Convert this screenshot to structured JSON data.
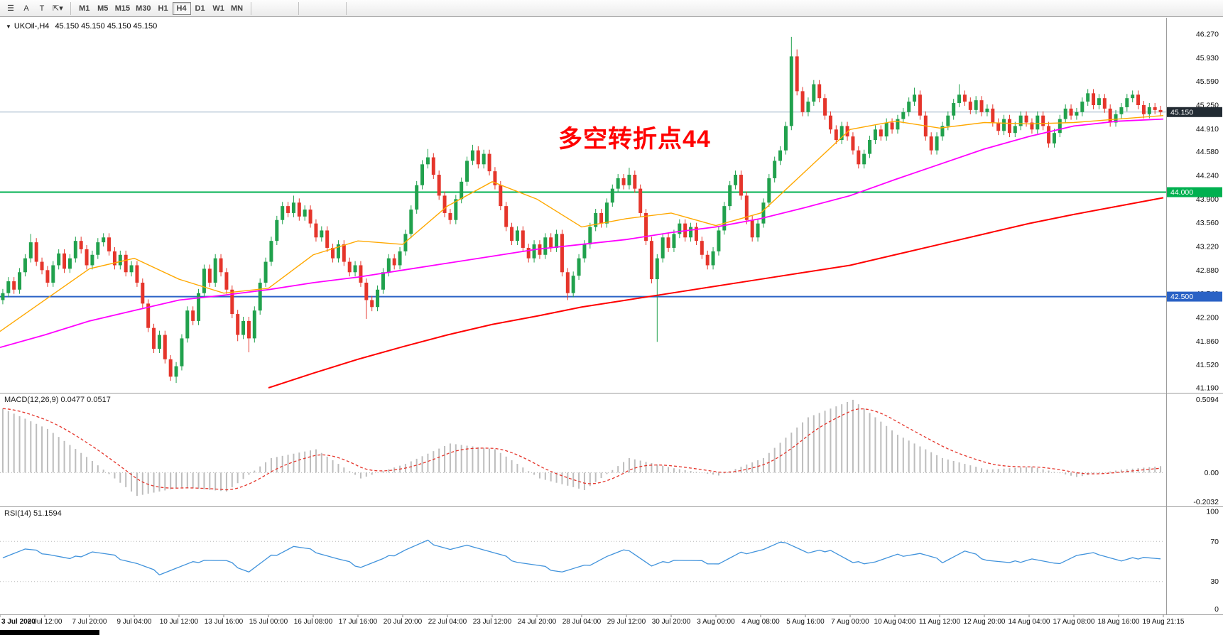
{
  "toolbar": {
    "tools": [
      {
        "name": "charts-list-icon",
        "glyph": "☰"
      },
      {
        "name": "cursor-tool-button",
        "glyph": "A"
      },
      {
        "name": "text-tool-button",
        "glyph": "T"
      },
      {
        "name": "shapes-dropdown-icon",
        "glyph": "⇱▾"
      }
    ],
    "timeframes": [
      "M1",
      "M5",
      "M15",
      "M30",
      "H1",
      "H4",
      "D1",
      "W1",
      "MN"
    ],
    "active_timeframe": "H4"
  },
  "chart": {
    "collapse_arrow": "▼",
    "symbol_label": "UKOil-,H4",
    "ohlc_label": "45.150 45.150 45.150 45.150",
    "annotation": "多空转折点44",
    "current_price_label": "45.150",
    "green_level_label": "44.000",
    "blue_level_label": "42.500",
    "price_axis": [
      "46.270",
      "45.930",
      "45.590",
      "45.250",
      "44.910",
      "44.580",
      "44.240",
      "43.900",
      "43.560",
      "43.220",
      "42.880",
      "42.540",
      "42.200",
      "41.860",
      "41.520",
      "41.190"
    ],
    "time_axis": [
      "3 Jul 2020",
      "6 Jul 12:00",
      "7 Jul 20:00",
      "9 Jul 04:00",
      "10 Jul 12:00",
      "13 Jul 16:00",
      "15 Jul 00:00",
      "16 Jul 08:00",
      "17 Jul 16:00",
      "20 Jul 20:00",
      "22 Jul 04:00",
      "23 Jul 12:00",
      "24 Jul 20:00",
      "28 Jul 04:00",
      "29 Jul 12:00",
      "30 Jul 20:00",
      "3 Aug 00:00",
      "4 Aug 08:00",
      "5 Aug 16:00",
      "7 Aug 00:00",
      "10 Aug 04:00",
      "11 Aug 12:00",
      "12 Aug 20:00",
      "14 Aug 04:00",
      "17 Aug 08:00",
      "18 Aug 16:00",
      "19 Aug 21:15"
    ]
  },
  "macd_panel": {
    "label": "MACD(12,26,9) 0.0477 0.0517",
    "axis_max": "0.5094",
    "axis_zero": "0.00",
    "axis_min": "-0.2032"
  },
  "rsi_panel": {
    "label": "RSI(14) 51.1594",
    "axis": [
      "100",
      "70",
      "30",
      "0"
    ],
    "levels": [
      70,
      30
    ]
  },
  "colors": {
    "up": "#21A14D",
    "down": "#E5352B",
    "ma_fast": "#FFA800",
    "ma_medium": "#FF00FF",
    "ma_slow": "#FF0000",
    "green_line": "#00B050",
    "blue_line": "#2A62C5",
    "bid_line": "#9DB3C8",
    "bid_badge": "#222B33",
    "macd_hist": "#BDBDBD",
    "macd_signal": "#E5352B",
    "rsi": "#4193DC",
    "annotation": "#FF0000"
  },
  "chart_data": {
    "type": "candlestick",
    "symbol": "UKOil-",
    "timeframe": "H4",
    "price_top": 46.27,
    "price_bottom": 41.19,
    "current_price": 45.15,
    "green_level": 44.0,
    "blue_level": 42.5,
    "first_open": 42.45,
    "default_wick": 0.06,
    "closes": [
      42.55,
      42.72,
      42.6,
      42.85,
      43.05,
      43.28,
      43.0,
      42.88,
      42.7,
      42.95,
      43.12,
      42.9,
      43.05,
      43.3,
      43.18,
      42.95,
      43.1,
      43.28,
      43.35,
      43.15,
      42.95,
      43.1,
      42.85,
      42.95,
      42.7,
      42.4,
      42.05,
      41.75,
      41.95,
      41.6,
      41.35,
      41.5,
      41.9,
      42.3,
      42.15,
      42.55,
      42.9,
      42.7,
      43.05,
      42.85,
      42.6,
      42.25,
      41.95,
      42.15,
      41.9,
      42.3,
      42.7,
      43.0,
      43.3,
      43.6,
      43.8,
      43.7,
      43.85,
      43.65,
      43.75,
      43.55,
      43.35,
      43.45,
      43.2,
      43.05,
      43.25,
      43.0,
      42.85,
      42.95,
      42.7,
      42.45,
      42.35,
      42.6,
      42.85,
      43.05,
      42.95,
      43.15,
      43.4,
      43.75,
      44.1,
      44.4,
      44.5,
      44.25,
      43.95,
      43.7,
      43.6,
      43.9,
      44.15,
      44.45,
      44.6,
      44.4,
      44.55,
      44.3,
      44.1,
      43.8,
      43.5,
      43.3,
      43.45,
      43.2,
      43.05,
      43.25,
      43.1,
      43.35,
      43.2,
      43.4,
      42.85,
      42.55,
      42.8,
      43.05,
      43.25,
      43.5,
      43.7,
      43.55,
      43.85,
      44.05,
      44.2,
      44.1,
      44.25,
      44.05,
      43.7,
      43.3,
      42.75,
      43.05,
      43.35,
      43.2,
      43.4,
      43.55,
      43.35,
      43.5,
      43.3,
      43.1,
      42.95,
      43.15,
      43.45,
      43.8,
      44.1,
      44.25,
      43.95,
      43.6,
      43.35,
      43.55,
      43.85,
      44.2,
      44.45,
      44.6,
      44.95,
      45.95,
      45.45,
      45.15,
      45.3,
      45.55,
      45.35,
      45.1,
      44.9,
      44.75,
      44.95,
      44.8,
      44.6,
      44.4,
      44.55,
      44.75,
      44.9,
      44.8,
      45.0,
      44.9,
      45.05,
      45.15,
      45.3,
      45.4,
      45.1,
      44.8,
      44.6,
      44.8,
      44.95,
      45.1,
      45.28,
      45.4,
      45.3,
      45.18,
      45.32,
      45.15,
      45.2,
      45.0,
      44.88,
      45.05,
      44.85,
      44.95,
      45.1,
      45.0,
      44.9,
      45.1,
      44.95,
      44.7,
      44.85,
      45.05,
      45.2,
      45.1,
      45.15,
      45.3,
      45.42,
      45.25,
      45.35,
      45.2,
      45.0,
      45.12,
      45.22,
      45.35,
      45.4,
      45.25,
      45.12,
      45.22,
      45.18,
      45.15
    ],
    "extremes": [
      {
        "bar": 5,
        "high": 43.4
      },
      {
        "bar": 31,
        "low": 41.26
      },
      {
        "bar": 42,
        "low": 41.86
      },
      {
        "bar": 44,
        "low": 41.7
      },
      {
        "bar": 52,
        "high": 43.95
      },
      {
        "bar": 65,
        "low": 42.18
      },
      {
        "bar": 76,
        "high": 44.62
      },
      {
        "bar": 84,
        "high": 44.68
      },
      {
        "bar": 101,
        "low": 42.45
      },
      {
        "bar": 112,
        "high": 44.35
      },
      {
        "bar": 117,
        "low": 41.85
      },
      {
        "bar": 141,
        "high": 46.23
      },
      {
        "bar": 142,
        "high": 46.05
      },
      {
        "bar": 163,
        "high": 45.5
      },
      {
        "bar": 171,
        "high": 45.55
      }
    ],
    "ma_fast": {
      "start": 0,
      "step": 8,
      "values": [
        42.0,
        42.45,
        42.9,
        43.05,
        42.75,
        42.55,
        42.62,
        43.1,
        43.3,
        43.25,
        43.8,
        44.15,
        43.9,
        43.5,
        43.62,
        43.7,
        43.52,
        43.7,
        44.3,
        44.9,
        45.02,
        44.92,
        45.0,
        44.98,
        45.0,
        45.05,
        45.1
      ]
    },
    "ma_medium": {
      "start": 0,
      "step": 8,
      "values": [
        41.77,
        41.95,
        42.15,
        42.3,
        42.45,
        42.52,
        42.6,
        42.7,
        42.78,
        42.88,
        42.98,
        43.08,
        43.18,
        43.25,
        43.32,
        43.42,
        43.5,
        43.62,
        43.78,
        43.95,
        44.18,
        44.4,
        44.62,
        44.8,
        44.95,
        45.02,
        45.05
      ]
    },
    "ma_slow": {
      "start": 48,
      "step": 8,
      "values": [
        41.19,
        41.4,
        41.6,
        41.78,
        41.95,
        42.1,
        42.22,
        42.35,
        42.45,
        42.55,
        42.65,
        42.75,
        42.85,
        42.95,
        43.1,
        43.25,
        43.4,
        43.55,
        43.68,
        43.8,
        43.92
      ]
    },
    "macd": {
      "step": 8,
      "max": 0.5094,
      "min": -0.2032,
      "values": [
        0.44,
        0.3,
        0.08,
        -0.16,
        -0.1,
        -0.13,
        0.1,
        0.16,
        -0.04,
        0.06,
        0.2,
        0.16,
        -0.04,
        -0.12,
        0.1,
        0.03,
        -0.02,
        0.1,
        0.38,
        0.5,
        0.26,
        0.1,
        0.02,
        0.04,
        -0.03,
        0.02,
        0.048
      ]
    },
    "rsi": {
      "step": 4,
      "values": [
        55,
        62,
        58,
        52,
        60,
        55,
        48,
        38,
        45,
        52,
        50,
        40,
        55,
        65,
        60,
        52,
        45,
        52,
        62,
        70,
        62,
        66,
        58,
        50,
        45,
        40,
        45,
        55,
        62,
        45,
        52,
        50,
        48,
        58,
        62,
        70,
        58,
        62,
        48,
        50,
        56,
        58,
        50,
        60,
        52,
        48,
        53,
        47,
        56,
        58,
        50,
        55,
        51.2
      ]
    }
  }
}
